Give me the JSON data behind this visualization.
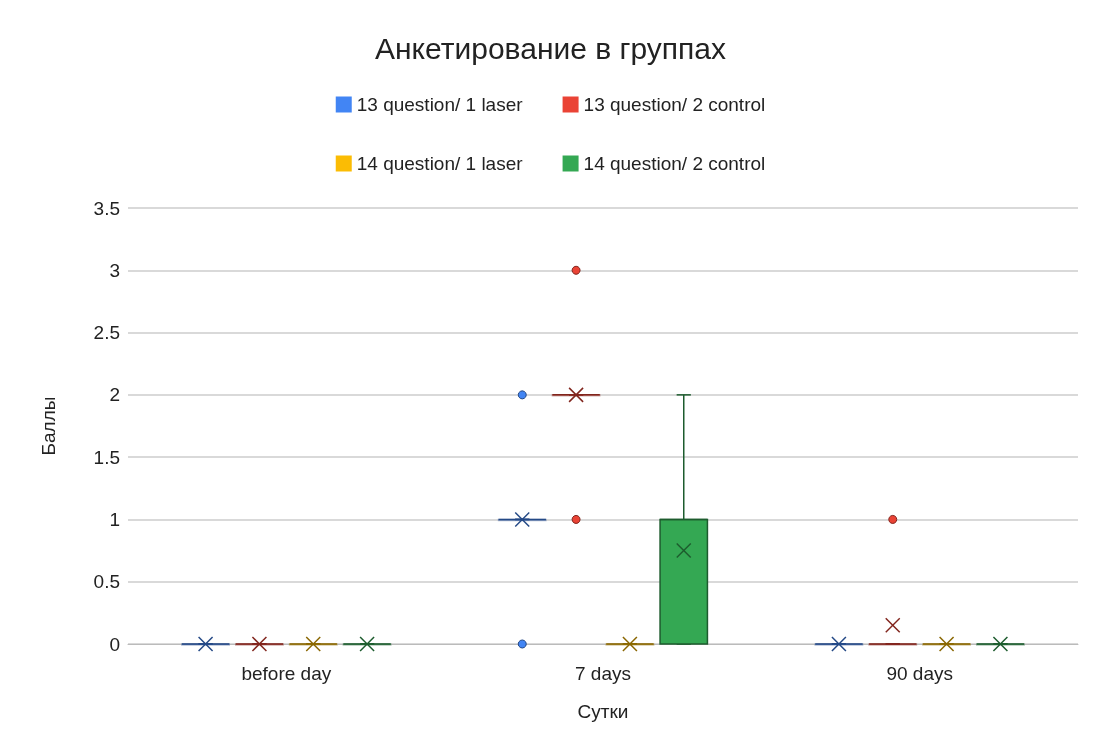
{
  "chart_data": {
    "type": "box",
    "title": "Анкетирование в группах",
    "xlabel": "Сутки",
    "ylabel": "Баллы",
    "categories": [
      "before day",
      "7 days",
      "90 days"
    ],
    "ylim": [
      0,
      3.5
    ],
    "yticks": [
      0,
      0.5,
      1,
      1.5,
      2,
      2.5,
      3,
      3.5
    ],
    "grid": "y",
    "legend": "top",
    "series": [
      {
        "name": "13 question/ 1 laser",
        "color": "#4285f4",
        "boxes": [
          {
            "low": 0,
            "q1": 0,
            "median": 0,
            "q3": 0,
            "high": 0,
            "mean": 0
          },
          {
            "low": 1,
            "q1": 1,
            "median": 1,
            "q3": 1,
            "high": 1,
            "mean": 1,
            "outliers": [
              2,
              0
            ]
          },
          {
            "low": 0,
            "q1": 0,
            "median": 0,
            "q3": 0,
            "high": 0,
            "mean": 0
          }
        ]
      },
      {
        "name": "13 question/ 2 control",
        "color": "#ea4335",
        "boxes": [
          {
            "low": 0,
            "q1": 0,
            "median": 0,
            "q3": 0,
            "high": 0,
            "mean": 0
          },
          {
            "low": 2,
            "q1": 2,
            "median": 2,
            "q3": 2,
            "high": 2,
            "mean": 2,
            "outliers": [
              3,
              1
            ]
          },
          {
            "low": 0,
            "q1": 0,
            "median": 0,
            "q3": 0,
            "high": 0,
            "mean": 0.15,
            "outliers": [
              1
            ]
          }
        ]
      },
      {
        "name": "14 question/ 1 laser",
        "color": "#fbbc04",
        "boxes": [
          {
            "low": 0,
            "q1": 0,
            "median": 0,
            "q3": 0,
            "high": 0,
            "mean": 0
          },
          {
            "low": 0,
            "q1": 0,
            "median": 0,
            "q3": 0,
            "high": 0,
            "mean": 0
          },
          {
            "low": 0,
            "q1": 0,
            "median": 0,
            "q3": 0,
            "high": 0,
            "mean": 0
          }
        ]
      },
      {
        "name": "14 question/ 2 control",
        "color": "#34a853",
        "boxes": [
          {
            "low": 0,
            "q1": 0,
            "median": 0,
            "q3": 0,
            "high": 0,
            "mean": 0
          },
          {
            "low": 0,
            "q1": 0,
            "median": 1,
            "q3": 1,
            "high": 2,
            "mean": 0.75
          },
          {
            "low": 0,
            "q1": 0,
            "median": 0,
            "q3": 0,
            "high": 0,
            "mean": 0
          }
        ]
      }
    ]
  }
}
